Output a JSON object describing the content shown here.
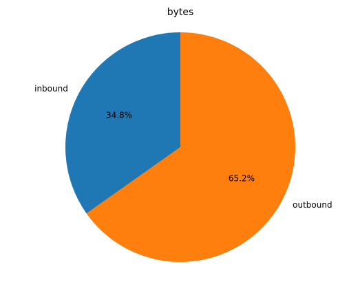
{
  "chart_data": {
    "type": "pie",
    "title": "bytes",
    "labels": [
      "inbound",
      "outbound"
    ],
    "values": [
      34.8,
      65.2
    ],
    "percent_labels": [
      "34.8%",
      "65.2%"
    ],
    "colors": [
      "#1f77b4",
      "#ff7f0e"
    ],
    "start_angle_deg": 90,
    "direction": "counterclockwise"
  }
}
